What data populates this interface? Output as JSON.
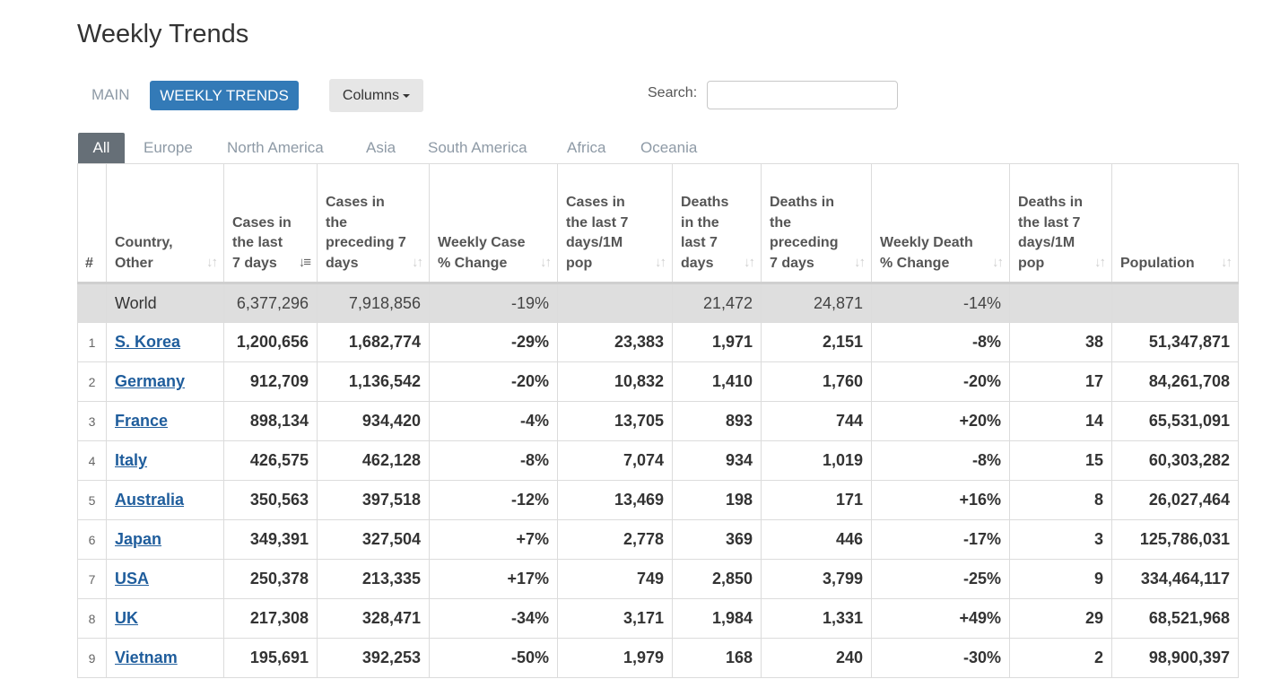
{
  "page": {
    "title": "Weekly Trends"
  },
  "toolbar": {
    "main_label": "MAIN",
    "weekly_trends_label": "WEEKLY TRENDS",
    "columns_label": "Columns",
    "search_label": "Search:",
    "search_value": ""
  },
  "tabs": [
    "All",
    "Europe",
    "North America",
    "Asia",
    "South America",
    "Africa",
    "Oceania"
  ],
  "table": {
    "headers": {
      "index": "#",
      "country": "Country, Other",
      "cases_last7": "Cases in the last 7 days",
      "cases_prev7": "Cases in the preceding 7 days",
      "weekly_case_change": "Weekly Case % Change",
      "cases_per_1m": "Cases in the last 7 days/1M pop",
      "deaths_last7": "Deaths in the last 7 days",
      "deaths_prev7": "Deaths in the preceding 7 days",
      "weekly_death_change": "Weekly Death % Change",
      "deaths_per_1m": "Deaths in the last 7 days/1M pop",
      "population": "Population"
    },
    "world": {
      "country": "World",
      "cases_last7": "6,377,296",
      "cases_prev7": "7,918,856",
      "weekly_case_change": "-19%",
      "cases_per_1m": "",
      "deaths_last7": "21,472",
      "deaths_prev7": "24,871",
      "weekly_death_change": "-14%",
      "deaths_per_1m": "",
      "population": ""
    },
    "rows": [
      {
        "idx": "1",
        "country": "S. Korea",
        "cases_last7": "1,200,656",
        "cases_prev7": "1,682,774",
        "weekly_case_change": "-29%",
        "cases_per_1m": "23,383",
        "deaths_last7": "1,971",
        "deaths_prev7": "2,151",
        "weekly_death_change": "-8%",
        "deaths_per_1m": "38",
        "population": "51,347,871"
      },
      {
        "idx": "2",
        "country": "Germany",
        "cases_last7": "912,709",
        "cases_prev7": "1,136,542",
        "weekly_case_change": "-20%",
        "cases_per_1m": "10,832",
        "deaths_last7": "1,410",
        "deaths_prev7": "1,760",
        "weekly_death_change": "-20%",
        "deaths_per_1m": "17",
        "population": "84,261,708"
      },
      {
        "idx": "3",
        "country": "France",
        "cases_last7": "898,134",
        "cases_prev7": "934,420",
        "weekly_case_change": "-4%",
        "cases_per_1m": "13,705",
        "deaths_last7": "893",
        "deaths_prev7": "744",
        "weekly_death_change": "+20%",
        "deaths_per_1m": "14",
        "population": "65,531,091"
      },
      {
        "idx": "4",
        "country": "Italy",
        "cases_last7": "426,575",
        "cases_prev7": "462,128",
        "weekly_case_change": "-8%",
        "cases_per_1m": "7,074",
        "deaths_last7": "934",
        "deaths_prev7": "1,019",
        "weekly_death_change": "-8%",
        "deaths_per_1m": "15",
        "population": "60,303,282"
      },
      {
        "idx": "5",
        "country": "Australia",
        "cases_last7": "350,563",
        "cases_prev7": "397,518",
        "weekly_case_change": "-12%",
        "cases_per_1m": "13,469",
        "deaths_last7": "198",
        "deaths_prev7": "171",
        "weekly_death_change": "+16%",
        "deaths_per_1m": "8",
        "population": "26,027,464"
      },
      {
        "idx": "6",
        "country": "Japan",
        "cases_last7": "349,391",
        "cases_prev7": "327,504",
        "weekly_case_change": "+7%",
        "cases_per_1m": "2,778",
        "deaths_last7": "369",
        "deaths_prev7": "446",
        "weekly_death_change": "-17%",
        "deaths_per_1m": "3",
        "population": "125,786,031"
      },
      {
        "idx": "7",
        "country": "USA",
        "cases_last7": "250,378",
        "cases_prev7": "213,335",
        "weekly_case_change": "+17%",
        "cases_per_1m": "749",
        "deaths_last7": "2,850",
        "deaths_prev7": "3,799",
        "weekly_death_change": "-25%",
        "deaths_per_1m": "9",
        "population": "334,464,117"
      },
      {
        "idx": "8",
        "country": "UK",
        "cases_last7": "217,308",
        "cases_prev7": "328,471",
        "weekly_case_change": "-34%",
        "cases_per_1m": "3,171",
        "deaths_last7": "1,984",
        "deaths_prev7": "1,331",
        "weekly_death_change": "+49%",
        "deaths_per_1m": "29",
        "population": "68,521,968"
      },
      {
        "idx": "9",
        "country": "Vietnam",
        "cases_last7": "195,691",
        "cases_prev7": "392,253",
        "weekly_case_change": "-50%",
        "cases_per_1m": "1,979",
        "deaths_last7": "168",
        "deaths_prev7": "240",
        "weekly_death_change": "-30%",
        "deaths_per_1m": "2",
        "population": "98,900,397"
      }
    ]
  },
  "colors": {
    "accent": "#337ab7",
    "active_tab": "#666f77",
    "link": "#1f5d9c",
    "world_row": "#dedede"
  },
  "icons": {
    "sort": "sort-arrows-icon",
    "sort_active": "sort-desc-icon",
    "caret": "caret-down-icon"
  }
}
